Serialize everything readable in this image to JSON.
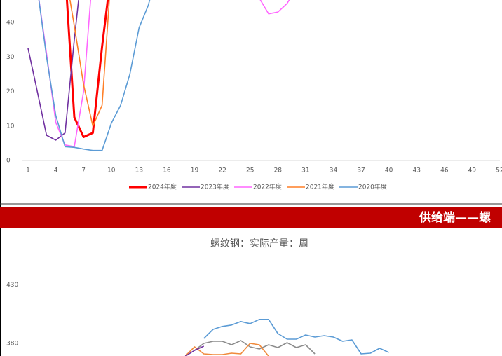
{
  "banner": "供给端——螺",
  "chart_data": [
    {
      "type": "line",
      "xlim": [
        1,
        52
      ],
      "xticks": [
        1,
        4,
        7,
        10,
        13,
        16,
        19,
        22,
        25,
        28,
        31,
        34,
        37,
        40,
        43,
        46,
        49,
        52
      ],
      "ylim": [
        0,
        46.5
      ],
      "yticks": [
        0,
        10,
        20,
        30,
        40
      ],
      "series": [
        {
          "name": "2024年度",
          "color": "#ff0000",
          "x": [
            5,
            6,
            7,
            8,
            9,
            10
          ],
          "values": [
            55,
            12.5,
            6.8,
            8,
            33,
            55
          ]
        },
        {
          "name": "2023年度",
          "color": "#7030a0",
          "x": [
            1,
            2,
            3,
            4,
            5,
            6,
            7
          ],
          "values": [
            32.5,
            20,
            7.3,
            5.9,
            8,
            35,
            60
          ]
        },
        {
          "name": "2022年度",
          "color": "#ff66ff",
          "x": [
            2,
            3,
            4,
            5,
            6,
            7,
            8,
            25,
            26,
            27,
            28,
            29,
            30
          ],
          "values": [
            50,
            31,
            11,
            4.5,
            4,
            20,
            55,
            55,
            47,
            42.5,
            43,
            45.5,
            50
          ]
        },
        {
          "name": "2021年度",
          "color": "#ff7f27",
          "x": [
            5,
            6,
            7,
            8,
            9,
            10
          ],
          "values": [
            55,
            39,
            22,
            10,
            16,
            55
          ]
        },
        {
          "name": "2020年度",
          "color": "#5b9bd5",
          "x": [
            2,
            3,
            4,
            5,
            6,
            7,
            8,
            9,
            10,
            11,
            12,
            13,
            14,
            15
          ],
          "values": [
            50,
            30,
            13,
            4,
            3.8,
            3.3,
            2.9,
            2.9,
            10.8,
            16,
            25,
            38.5,
            45,
            55
          ]
        }
      ]
    },
    {
      "type": "line",
      "title": "螺纹钢：实际产量：周",
      "xlim": [
        1,
        52
      ],
      "ylim": [
        350,
        452
      ],
      "yticks": [
        380,
        430
      ],
      "series": [
        {
          "color": "#5b9bd5",
          "x": [
            20,
            21,
            22,
            23,
            24,
            25,
            26,
            27,
            28,
            29,
            30,
            31,
            32,
            33,
            34,
            35,
            36,
            37,
            38,
            39,
            40
          ],
          "values": [
            384.2,
            392,
            394.5,
            395.7,
            398.7,
            396.9,
            400.5,
            400.5,
            388.4,
            383.6,
            383.6,
            387.2,
            385.4,
            386.6,
            385.4,
            381.8,
            383,
            371,
            371.6,
            375.8,
            372.2
          ]
        },
        {
          "color": "#8c8c8c",
          "x": [
            19,
            20,
            21,
            22,
            23,
            24,
            25,
            26,
            27,
            28,
            29,
            30,
            31,
            32
          ],
          "values": [
            374,
            380,
            381.8,
            381.8,
            378.8,
            382.4,
            377,
            375.2,
            378.8,
            376.4,
            380.6,
            376.4,
            378.8,
            371
          ]
        },
        {
          "color": "#f08a3c",
          "x": [
            18,
            19,
            20,
            21,
            22,
            23,
            24,
            25,
            26,
            27
          ],
          "values": [
            369.2,
            377,
            371,
            370.4,
            370.4,
            371.6,
            371,
            380,
            378.8,
            369
          ]
        },
        {
          "color": "#7030a0",
          "x": [
            18,
            19,
            20
          ],
          "values": [
            369,
            374,
            377.6
          ]
        }
      ]
    }
  ]
}
